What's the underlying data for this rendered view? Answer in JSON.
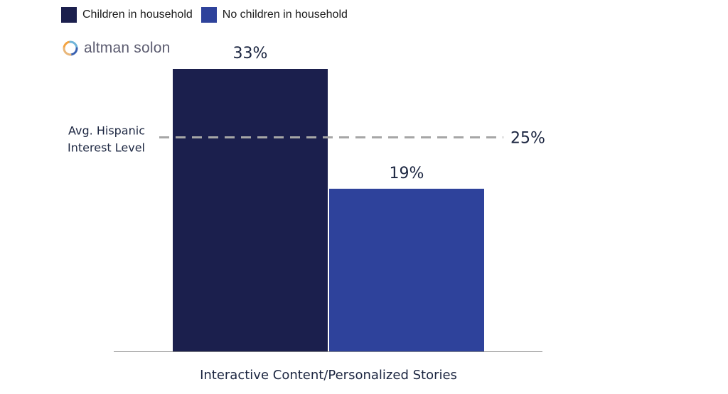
{
  "legend": {
    "items": [
      {
        "label": "Children in household",
        "color": "#1b1f4d"
      },
      {
        "label": "No children in household",
        "color": "#2e429b"
      }
    ]
  },
  "logo": {
    "text": "altman solon"
  },
  "chart_data": {
    "type": "bar",
    "categories": [
      "Interactive Content/Personalized Stories"
    ],
    "series": [
      {
        "name": "Children in household",
        "values": [
          33
        ],
        "label": "33%",
        "color": "#1b1f4d"
      },
      {
        "name": "No children in household",
        "values": [
          19
        ],
        "label": "19%",
        "color": "#2e429b"
      }
    ],
    "ylim": [
      0,
      33
    ],
    "reference_line": {
      "value": 25,
      "label": "25%",
      "caption": [
        "Avg. Hispanic",
        "Interest Level"
      ],
      "color": "#a6a6a6"
    },
    "xlabel": "",
    "ylabel": "",
    "grid": false
  }
}
